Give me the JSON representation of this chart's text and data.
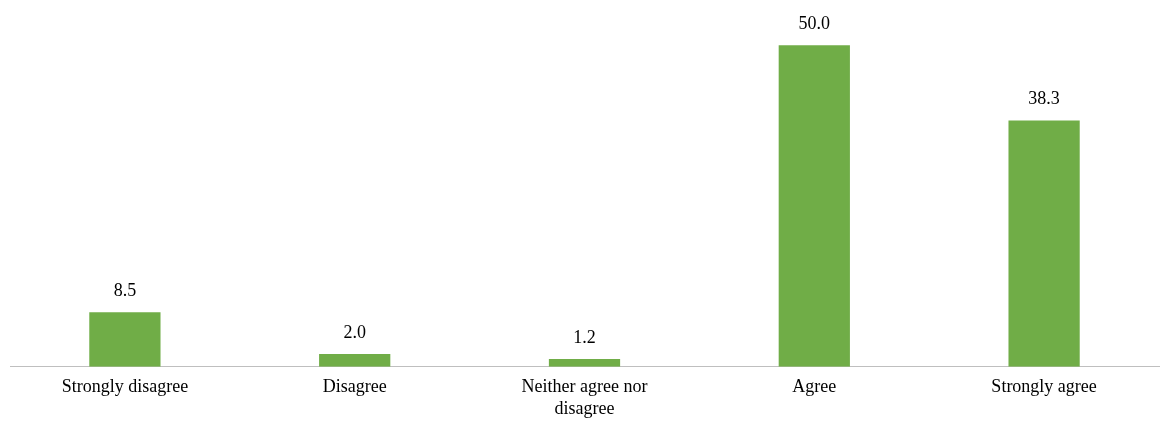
{
  "chart_data": {
    "type": "bar",
    "categories": [
      "Strongly disagree",
      "Disagree",
      "Neither agree nor disagree",
      "Agree",
      "Strongly agree"
    ],
    "values": [
      8.5,
      2.0,
      1.2,
      50.0,
      38.3
    ],
    "value_labels": [
      "8.5",
      "2.0",
      "1.2",
      "50.0",
      "38.3"
    ],
    "color": "#70ad47",
    "grid": false,
    "legend": false
  }
}
